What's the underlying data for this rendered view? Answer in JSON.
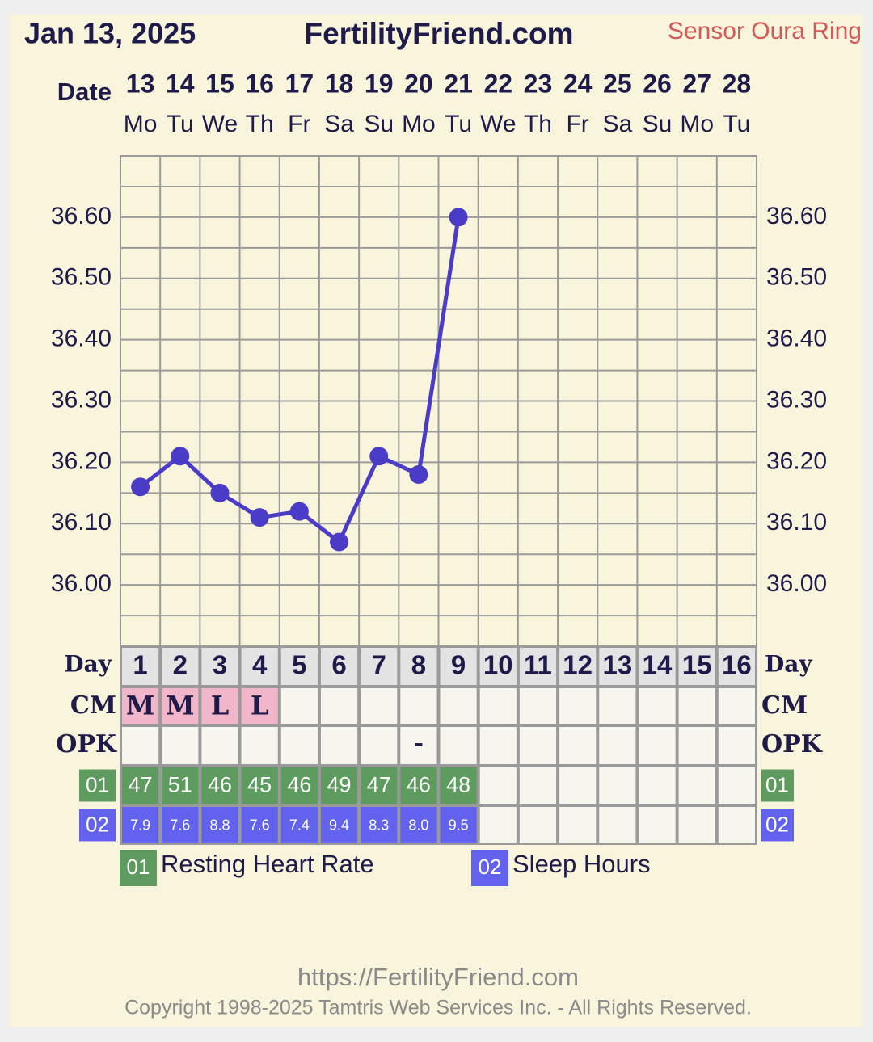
{
  "chart_data": {
    "type": "line",
    "title": "FertilityFriend.com",
    "date": "Jan 13, 2025",
    "sensor": "Sensor Oura Ring",
    "date_label": "Date",
    "categories": [
      13,
      14,
      15,
      16,
      17,
      18,
      19,
      20,
      21,
      22,
      23,
      24,
      25,
      26,
      27,
      28
    ],
    "weekdays": [
      "Mo",
      "Tu",
      "We",
      "Th",
      "Fr",
      "Sa",
      "Su",
      "Mo",
      "Tu",
      "We",
      "Th",
      "Fr",
      "Sa",
      "Su",
      "Mo",
      "Tu"
    ],
    "day_label": "Day",
    "days": [
      1,
      2,
      3,
      4,
      5,
      6,
      7,
      8,
      9,
      10,
      11,
      12,
      13,
      14,
      15,
      16
    ],
    "color": "#4b3cc8",
    "values": [
      36.16,
      36.21,
      36.15,
      36.11,
      36.12,
      36.07,
      36.21,
      36.18,
      36.6,
      null,
      null,
      null,
      null,
      null,
      null,
      null
    ],
    "ylim": [
      35.9,
      36.7
    ],
    "yticks": [
      {
        "value": 36.0,
        "label": "36.00"
      },
      {
        "value": 36.1,
        "label": "36.10"
      },
      {
        "value": 36.2,
        "label": "36.20"
      },
      {
        "value": 36.3,
        "label": "36.30"
      },
      {
        "value": 36.4,
        "label": "36.40"
      },
      {
        "value": 36.5,
        "label": "36.50"
      },
      {
        "value": 36.6,
        "label": "36.60"
      }
    ],
    "ygrid": [
      35.9,
      35.95,
      36.0,
      36.05,
      36.1,
      36.15,
      36.2,
      36.25,
      36.3,
      36.35,
      36.4,
      36.45,
      36.5,
      36.55,
      36.6,
      36.65,
      36.7
    ],
    "cm": {
      "label": "CM",
      "values": [
        "M",
        "M",
        "L",
        "L",
        null,
        null,
        null,
        null,
        null,
        null,
        null,
        null,
        null,
        null,
        null,
        null
      ]
    },
    "opk": {
      "label": "OPK",
      "values": [
        null,
        null,
        null,
        null,
        null,
        null,
        null,
        "-",
        null,
        null,
        null,
        null,
        null,
        null,
        null,
        null
      ]
    },
    "series": [
      {
        "code": "01",
        "name": "Resting Heart Rate",
        "color": "#5e9b5e",
        "values": [
          47,
          51,
          46,
          45,
          46,
          49,
          47,
          46,
          48,
          null,
          null,
          null,
          null,
          null,
          null,
          null
        ]
      },
      {
        "code": "02",
        "name": "Sleep Hours",
        "color": "#6262ef",
        "values": [
          7.9,
          7.6,
          8.8,
          7.6,
          7.4,
          9.4,
          8.3,
          8.0,
          9.5,
          null,
          null,
          null,
          null,
          null,
          null,
          null
        ],
        "value_labels": [
          "7.9",
          "7.6",
          "8.8",
          "7.6",
          "7.4",
          "9.4",
          "8.3",
          "8.0",
          "9.5",
          null,
          null,
          null,
          null,
          null,
          null,
          null
        ]
      }
    ]
  },
  "footer": {
    "url": "https://FertilityFriend.com",
    "copyright": "Copyright 1998-2025 Tamtris Web Services Inc. - All Rights Reserved."
  }
}
